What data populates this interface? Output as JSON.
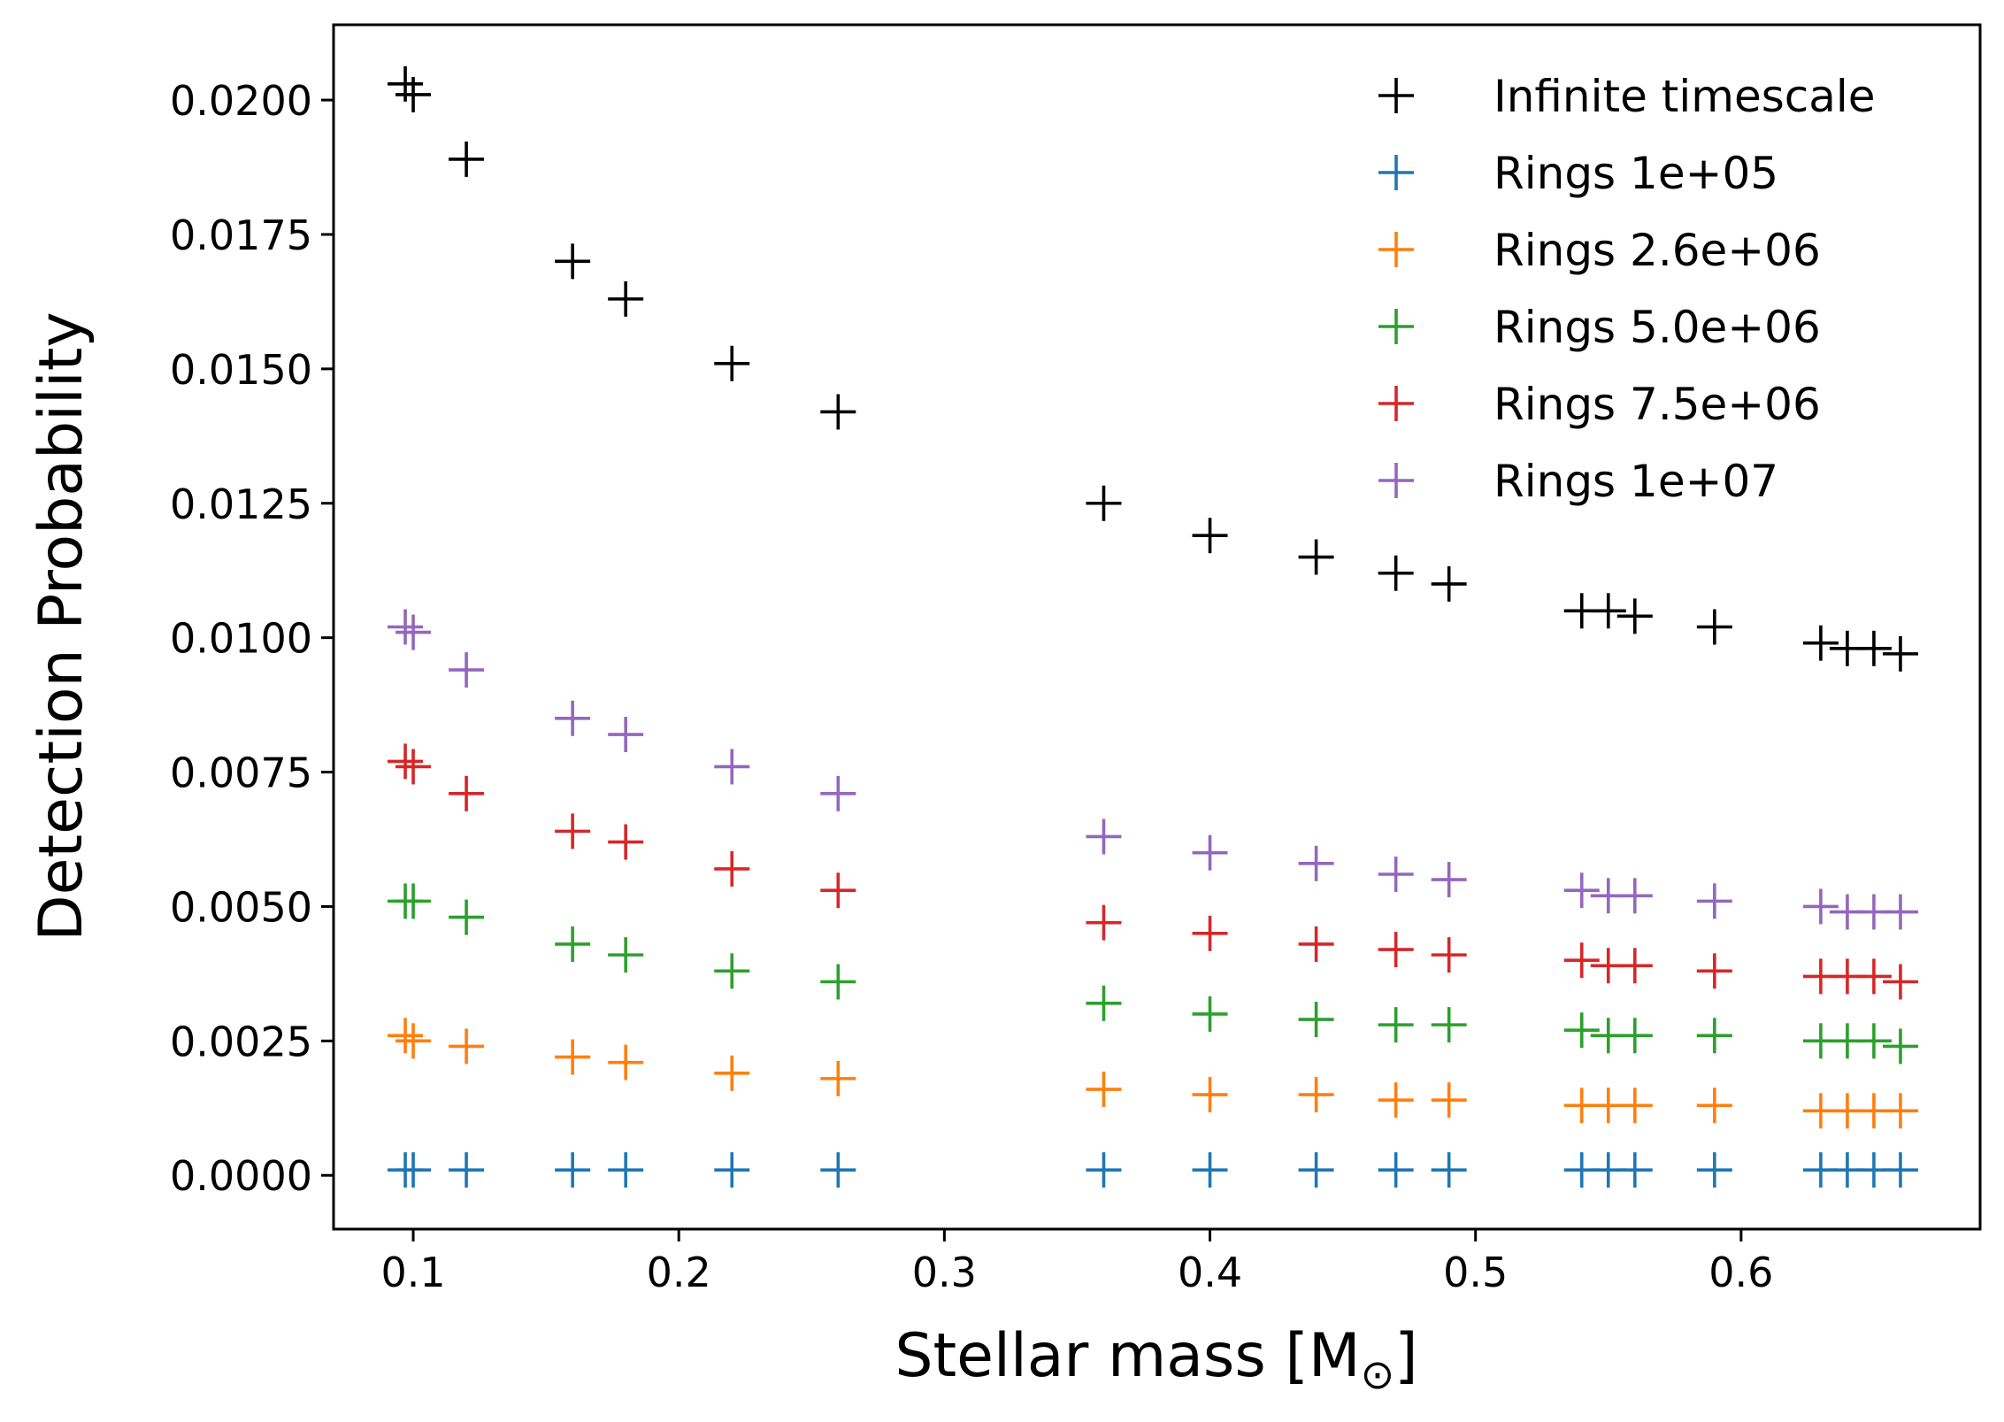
{
  "chart_data": {
    "type": "scatter",
    "title": "",
    "xlabel": "Stellar mass [M",
    "xlabel_sub": "⊙",
    "xlabel_close": "]",
    "ylabel": "Detection Probability",
    "xlim": [
      0.07,
      0.69
    ],
    "ylim": [
      -0.001,
      0.0214
    ],
    "xticks": [
      0.1,
      0.2,
      0.3,
      0.4,
      0.5,
      0.6
    ],
    "xtick_labels": [
      "0.1",
      "0.2",
      "0.3",
      "0.4",
      "0.5",
      "0.6"
    ],
    "yticks": [
      0.0,
      0.0025,
      0.005,
      0.0075,
      0.01,
      0.0125,
      0.015,
      0.0175,
      0.02
    ],
    "ytick_labels": [
      "0.0000",
      "0.0025",
      "0.0050",
      "0.0075",
      "0.0100",
      "0.0125",
      "0.0150",
      "0.0175",
      "0.0200"
    ],
    "grid": false,
    "legend_position": "top-right",
    "marker": "+",
    "x": [
      0.097,
      0.1,
      0.12,
      0.16,
      0.18,
      0.22,
      0.26,
      0.36,
      0.4,
      0.44,
      0.47,
      0.49,
      0.54,
      0.55,
      0.56,
      0.59,
      0.63,
      0.64,
      0.65,
      0.66
    ],
    "series": [
      {
        "name": "Infinite timescale",
        "color": "#000000",
        "values": [
          0.0203,
          0.0201,
          0.0189,
          0.017,
          0.0163,
          0.0151,
          0.0142,
          0.0125,
          0.0119,
          0.0115,
          0.0112,
          0.011,
          0.0105,
          0.0105,
          0.0104,
          0.0102,
          0.0099,
          0.0098,
          0.0098,
          0.0097
        ]
      },
      {
        "name": "Rings 1e+05",
        "color": "#1f77b4",
        "values": [
          0.0001,
          0.0001,
          0.0001,
          0.0001,
          0.0001,
          0.0001,
          0.0001,
          0.0001,
          0.0001,
          0.0001,
          0.0001,
          0.0001,
          0.0001,
          0.0001,
          0.0001,
          0.0001,
          0.0001,
          0.0001,
          0.0001,
          0.0001
        ]
      },
      {
        "name": "Rings 2.6e+06",
        "color": "#ff7f0e",
        "values": [
          0.0026,
          0.0025,
          0.0024,
          0.0022,
          0.0021,
          0.0019,
          0.0018,
          0.0016,
          0.0015,
          0.0015,
          0.0014,
          0.0014,
          0.0013,
          0.0013,
          0.0013,
          0.0013,
          0.0012,
          0.0012,
          0.0012,
          0.0012
        ]
      },
      {
        "name": "Rings 5.0e+06",
        "color": "#2ca02c",
        "values": [
          0.0051,
          0.0051,
          0.0048,
          0.0043,
          0.0041,
          0.0038,
          0.0036,
          0.0032,
          0.003,
          0.0029,
          0.0028,
          0.0028,
          0.0027,
          0.0026,
          0.0026,
          0.0026,
          0.0025,
          0.0025,
          0.0025,
          0.0024
        ]
      },
      {
        "name": "Rings 7.5e+06",
        "color": "#d62728",
        "values": [
          0.0077,
          0.0076,
          0.0071,
          0.0064,
          0.0062,
          0.0057,
          0.0053,
          0.0047,
          0.0045,
          0.0043,
          0.0042,
          0.0041,
          0.004,
          0.0039,
          0.0039,
          0.0038,
          0.0037,
          0.0037,
          0.0037,
          0.0036
        ]
      },
      {
        "name": "Rings 1e+07",
        "color": "#9467bd",
        "values": [
          0.0102,
          0.0101,
          0.0094,
          0.0085,
          0.0082,
          0.0076,
          0.0071,
          0.0063,
          0.006,
          0.0058,
          0.0056,
          0.0055,
          0.0053,
          0.0052,
          0.0052,
          0.0051,
          0.005,
          0.0049,
          0.0049,
          0.0049
        ]
      }
    ]
  }
}
